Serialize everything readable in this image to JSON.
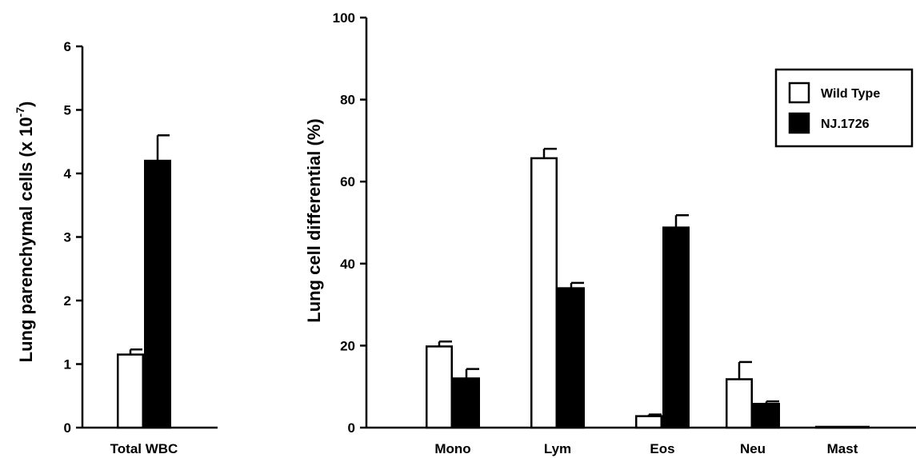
{
  "chart_data": [
    {
      "type": "bar",
      "ylabel": "Lung parenchymal cells (x 10",
      "ylabel_exponent": "-7",
      "ylabel_close": ")",
      "ylim": [
        0,
        6
      ],
      "yticks": [
        "0",
        "1",
        "2",
        "3",
        "4",
        "5",
        "6"
      ],
      "categories": [
        "Total WBC"
      ],
      "series": [
        {
          "name": "Wild Type",
          "values": [
            1.15
          ],
          "errors": [
            0.08
          ],
          "fill": "#ffffff"
        },
        {
          "name": "NJ.1726",
          "values": [
            4.2
          ],
          "errors": [
            0.4
          ],
          "fill": "#000000"
        }
      ]
    },
    {
      "type": "bar",
      "ylabel": "Lung cell differential (%)",
      "ylim": [
        0,
        100
      ],
      "yticks": [
        "0",
        "20",
        "40",
        "60",
        "80",
        "100"
      ],
      "categories": [
        "Mono",
        "Lym",
        "Eos",
        "Neu",
        "Mast"
      ],
      "series": [
        {
          "name": "Wild Type",
          "values": [
            19.8,
            65.7,
            2.8,
            11.8,
            0.2
          ],
          "errors": [
            1.2,
            2.3,
            0.4,
            4.2,
            0
          ],
          "fill": "#ffffff"
        },
        {
          "name": "NJ.1726",
          "values": [
            12.0,
            34.0,
            48.8,
            5.8,
            0.2
          ],
          "errors": [
            2.3,
            1.3,
            3.0,
            0.6,
            0
          ],
          "fill": "#000000"
        }
      ],
      "legend": {
        "position": "top-right",
        "entries": [
          "Wild Type",
          "NJ.1726"
        ]
      }
    }
  ]
}
